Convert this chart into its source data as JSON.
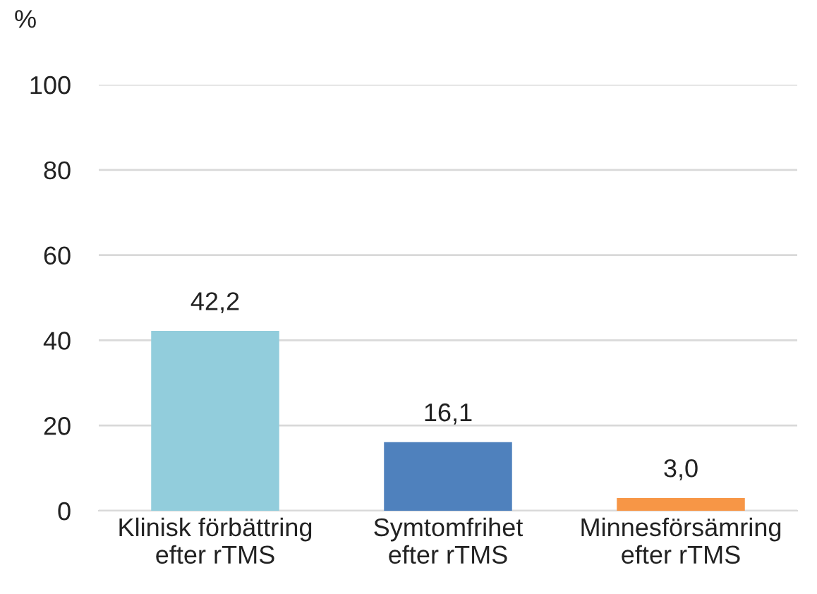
{
  "chart_data": {
    "type": "bar",
    "ylabel": "%",
    "categories": [
      "Klinisk förbättring\nefter rTMS",
      "Symtomfrihet\nefter rTMS",
      "Minnesförsämring\nefter rTMS"
    ],
    "values": [
      42.2,
      16.1,
      3.0
    ],
    "colors": [
      "#92cddc",
      "#4f81bd",
      "#f79646"
    ],
    "value_labels": [
      "42,2",
      "16,1",
      "3,0"
    ],
    "ylim": [
      0,
      100
    ],
    "yticks": [
      0,
      20,
      40,
      60,
      80,
      100
    ],
    "grid": "y",
    "legend": false
  }
}
